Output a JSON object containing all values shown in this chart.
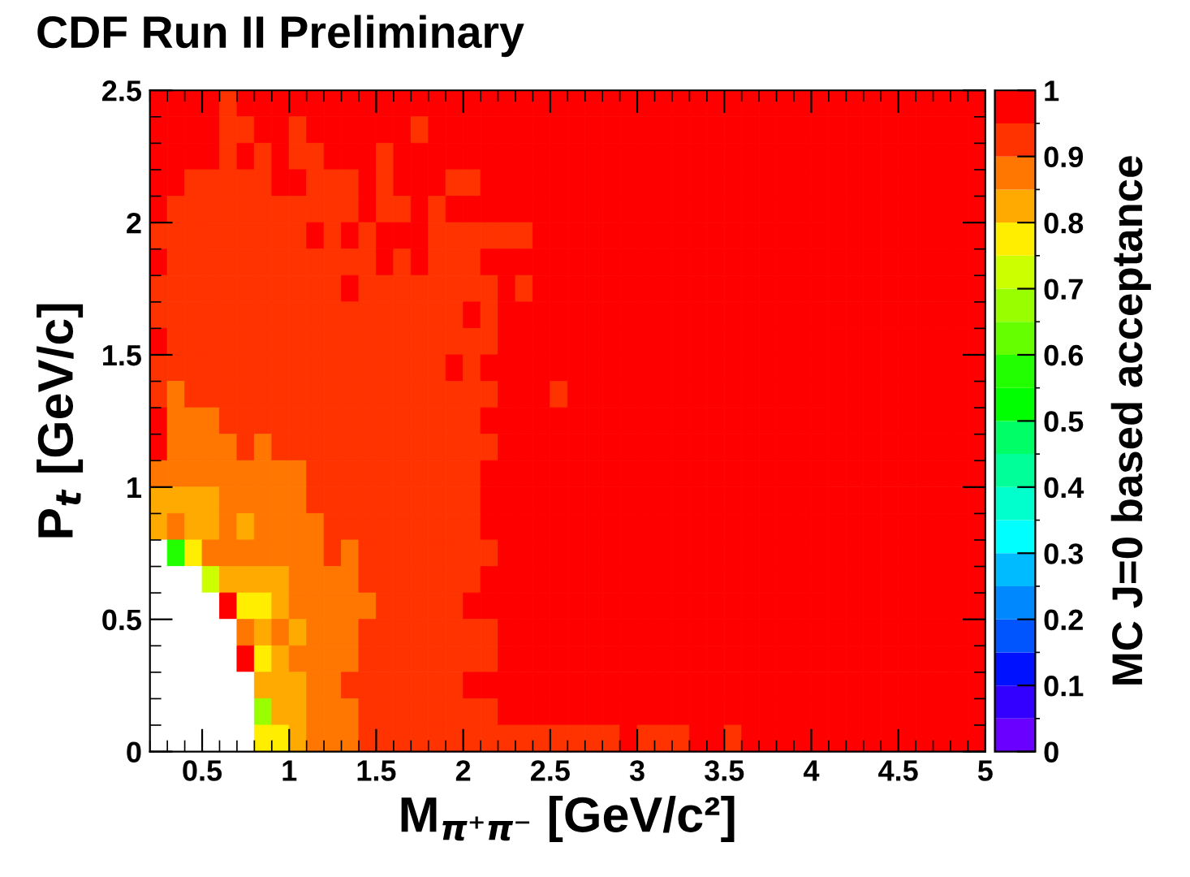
{
  "chart_data": {
    "type": "heatmap",
    "title": "CDF Run II Preliminary",
    "xlabel": "M$_{π⁺π⁻}$ [GeV/c²]",
    "ylabel": "P$_{t}$ [GeV/c]",
    "clabel": "MC J=0 based acceptance",
    "xlim": [
      0.2,
      5
    ],
    "ylim": [
      0,
      2.5
    ],
    "xticks": [
      0.5,
      1,
      1.5,
      2,
      2.5,
      3,
      3.5,
      4,
      4.5,
      5
    ],
    "yticks": [
      0,
      0.5,
      1,
      1.5,
      2,
      2.5
    ],
    "clim": [
      0,
      1
    ],
    "cticks": [
      0,
      0.1,
      0.2,
      0.3,
      0.4,
      0.5,
      0.6,
      0.7,
      0.8,
      0.9,
      1
    ],
    "cells": [
      [
        0.98,
        0.98,
        0.98,
        0.98,
        0.93,
        0.98,
        0.98,
        0.98,
        0.98,
        0.98,
        0.98,
        0.98,
        0.98,
        0.98,
        0.98,
        0.98,
        0.98,
        0.98,
        0.98,
        0.98,
        0.98,
        0.98,
        0.98,
        0.98,
        0.98,
        0.98,
        0.98,
        0.98,
        0.98,
        0.98,
        0.98,
        0.98,
        0.98,
        0.98,
        0.98,
        0.98,
        0.98,
        0.98,
        0.98,
        0.98,
        0.98,
        0.98,
        0.98,
        0.98,
        0.98,
        0.98,
        0.98,
        0.98
      ],
      [
        0.98,
        0.98,
        0.98,
        0.98,
        0.93,
        0.93,
        0.98,
        0.98,
        0.93,
        0.98,
        0.98,
        0.98,
        0.98,
        0.98,
        0.98,
        0.93,
        0.98,
        0.98,
        0.98,
        0.98,
        0.98,
        0.98,
        0.98,
        0.98,
        0.98,
        0.98,
        0.98,
        0.98,
        0.98,
        0.98,
        0.98,
        0.98,
        0.98,
        0.98,
        0.98,
        0.98,
        0.98,
        0.98,
        0.98,
        0.98,
        0.98,
        0.98,
        0.98,
        0.98,
        0.98,
        0.98,
        0.98,
        0.98
      ],
      [
        0.98,
        0.98,
        0.98,
        0.98,
        0.93,
        0.98,
        0.93,
        0.98,
        0.93,
        0.93,
        0.98,
        0.98,
        0.98,
        0.93,
        0.98,
        0.98,
        0.98,
        0.98,
        0.98,
        0.98,
        0.98,
        0.98,
        0.98,
        0.98,
        0.98,
        0.98,
        0.98,
        0.98,
        0.98,
        0.98,
        0.98,
        0.98,
        0.98,
        0.98,
        0.98,
        0.98,
        0.98,
        0.98,
        0.98,
        0.98,
        0.98,
        0.98,
        0.98,
        0.98,
        0.98,
        0.98,
        0.98,
        0.98
      ],
      [
        0.98,
        0.98,
        0.93,
        0.93,
        0.93,
        0.93,
        0.93,
        0.98,
        0.98,
        0.93,
        0.93,
        0.93,
        0.98,
        0.93,
        0.98,
        0.98,
        0.98,
        0.93,
        0.93,
        0.98,
        0.98,
        0.98,
        0.98,
        0.98,
        0.98,
        0.98,
        0.98,
        0.98,
        0.98,
        0.98,
        0.98,
        0.98,
        0.98,
        0.98,
        0.98,
        0.98,
        0.98,
        0.98,
        0.98,
        0.98,
        0.98,
        0.98,
        0.98,
        0.98,
        0.98,
        0.98,
        0.98,
        0.98
      ],
      [
        0.98,
        0.93,
        0.93,
        0.93,
        0.93,
        0.93,
        0.93,
        0.93,
        0.93,
        0.93,
        0.93,
        0.93,
        0.98,
        0.93,
        0.93,
        0.98,
        0.93,
        0.98,
        0.98,
        0.98,
        0.98,
        0.98,
        0.98,
        0.98,
        0.98,
        0.98,
        0.98,
        0.98,
        0.98,
        0.98,
        0.98,
        0.98,
        0.98,
        0.98,
        0.98,
        0.98,
        0.98,
        0.98,
        0.98,
        0.98,
        0.98,
        0.98,
        0.98,
        0.98,
        0.98,
        0.98,
        0.98,
        0.98
      ],
      [
        0.93,
        0.93,
        0.93,
        0.93,
        0.93,
        0.93,
        0.93,
        0.93,
        0.93,
        0.98,
        0.93,
        0.98,
        0.93,
        0.98,
        0.98,
        0.98,
        0.93,
        0.93,
        0.93,
        0.93,
        0.93,
        0.93,
        0.98,
        0.98,
        0.98,
        0.98,
        0.98,
        0.98,
        0.98,
        0.98,
        0.98,
        0.98,
        0.98,
        0.98,
        0.98,
        0.98,
        0.98,
        0.98,
        0.98,
        0.98,
        0.98,
        0.98,
        0.98,
        0.98,
        0.98,
        0.98,
        0.98,
        0.98
      ],
      [
        0.98,
        0.93,
        0.93,
        0.93,
        0.93,
        0.93,
        0.93,
        0.93,
        0.93,
        0.93,
        0.93,
        0.93,
        0.93,
        0.98,
        0.93,
        0.98,
        0.93,
        0.93,
        0.93,
        0.98,
        0.98,
        0.98,
        0.98,
        0.98,
        0.98,
        0.98,
        0.98,
        0.98,
        0.98,
        0.98,
        0.98,
        0.98,
        0.98,
        0.98,
        0.98,
        0.98,
        0.98,
        0.98,
        0.98,
        0.98,
        0.98,
        0.98,
        0.98,
        0.98,
        0.98,
        0.98,
        0.98,
        0.98
      ],
      [
        0.93,
        0.93,
        0.93,
        0.93,
        0.93,
        0.93,
        0.93,
        0.93,
        0.93,
        0.93,
        0.93,
        0.98,
        0.93,
        0.93,
        0.93,
        0.93,
        0.93,
        0.93,
        0.93,
        0.93,
        0.98,
        0.93,
        0.98,
        0.98,
        0.98,
        0.98,
        0.98,
        0.98,
        0.98,
        0.98,
        0.98,
        0.98,
        0.98,
        0.98,
        0.98,
        0.98,
        0.98,
        0.98,
        0.98,
        0.98,
        0.98,
        0.98,
        0.98,
        0.98,
        0.98,
        0.98,
        0.98,
        0.98
      ],
      [
        0.93,
        0.93,
        0.93,
        0.93,
        0.93,
        0.93,
        0.93,
        0.93,
        0.93,
        0.93,
        0.93,
        0.93,
        0.93,
        0.93,
        0.93,
        0.93,
        0.93,
        0.93,
        0.98,
        0.93,
        0.98,
        0.98,
        0.98,
        0.98,
        0.98,
        0.98,
        0.98,
        0.98,
        0.98,
        0.98,
        0.98,
        0.98,
        0.98,
        0.98,
        0.98,
        0.98,
        0.98,
        0.98,
        0.98,
        0.98,
        0.98,
        0.98,
        0.98,
        0.98,
        0.98,
        0.98,
        0.98,
        0.98
      ],
      [
        0.98,
        0.93,
        0.93,
        0.93,
        0.93,
        0.93,
        0.93,
        0.93,
        0.93,
        0.93,
        0.93,
        0.93,
        0.93,
        0.93,
        0.93,
        0.93,
        0.93,
        0.93,
        0.93,
        0.93,
        0.98,
        0.98,
        0.98,
        0.98,
        0.98,
        0.98,
        0.98,
        0.98,
        0.98,
        0.98,
        0.98,
        0.98,
        0.98,
        0.98,
        0.98,
        0.98,
        0.98,
        0.98,
        0.98,
        0.98,
        0.98,
        0.98,
        0.98,
        0.98,
        0.98,
        0.98,
        0.98,
        0.98
      ],
      [
        0.93,
        0.93,
        0.93,
        0.93,
        0.93,
        0.93,
        0.93,
        0.93,
        0.93,
        0.93,
        0.93,
        0.93,
        0.93,
        0.93,
        0.93,
        0.93,
        0.93,
        0.98,
        0.93,
        0.98,
        0.98,
        0.98,
        0.98,
        0.98,
        0.98,
        0.98,
        0.98,
        0.98,
        0.98,
        0.98,
        0.98,
        0.98,
        0.98,
        0.98,
        0.98,
        0.98,
        0.98,
        0.98,
        0.98,
        0.98,
        0.98,
        0.98,
        0.98,
        0.98,
        0.98,
        0.98,
        0.98,
        0.98
      ],
      [
        0.93,
        0.88,
        0.93,
        0.93,
        0.93,
        0.93,
        0.93,
        0.93,
        0.93,
        0.93,
        0.93,
        0.93,
        0.93,
        0.93,
        0.93,
        0.93,
        0.93,
        0.93,
        0.93,
        0.93,
        0.98,
        0.98,
        0.98,
        0.93,
        0.98,
        0.98,
        0.98,
        0.98,
        0.98,
        0.98,
        0.98,
        0.98,
        0.98,
        0.98,
        0.98,
        0.98,
        0.98,
        0.98,
        0.98,
        0.98,
        0.98,
        0.98,
        0.98,
        0.98,
        0.98,
        0.98,
        0.98,
        0.98
      ],
      [
        0.98,
        0.88,
        0.88,
        0.88,
        0.93,
        0.93,
        0.93,
        0.93,
        0.93,
        0.93,
        0.93,
        0.93,
        0.93,
        0.93,
        0.93,
        0.93,
        0.93,
        0.93,
        0.93,
        0.98,
        0.98,
        0.98,
        0.98,
        0.98,
        0.98,
        0.98,
        0.98,
        0.98,
        0.98,
        0.98,
        0.98,
        0.98,
        0.98,
        0.98,
        0.98,
        0.98,
        0.98,
        0.98,
        0.98,
        0.98,
        0.98,
        0.98,
        0.98,
        0.98,
        0.98,
        0.98,
        0.98,
        0.98
      ],
      [
        0.98,
        0.88,
        0.88,
        0.88,
        0.88,
        0.93,
        0.88,
        0.93,
        0.93,
        0.93,
        0.93,
        0.93,
        0.93,
        0.93,
        0.93,
        0.93,
        0.93,
        0.93,
        0.93,
        0.93,
        0.98,
        0.98,
        0.98,
        0.98,
        0.98,
        0.98,
        0.98,
        0.98,
        0.98,
        0.98,
        0.98,
        0.98,
        0.98,
        0.98,
        0.98,
        0.98,
        0.98,
        0.98,
        0.98,
        0.98,
        0.98,
        0.98,
        0.98,
        0.98,
        0.98,
        0.98,
        0.98,
        0.98
      ],
      [
        0.88,
        0.88,
        0.88,
        0.88,
        0.88,
        0.88,
        0.88,
        0.88,
        0.88,
        0.93,
        0.93,
        0.93,
        0.93,
        0.93,
        0.93,
        0.93,
        0.93,
        0.93,
        0.93,
        0.98,
        0.98,
        0.98,
        0.98,
        0.98,
        0.98,
        0.98,
        0.98,
        0.98,
        0.98,
        0.98,
        0.98,
        0.98,
        0.98,
        0.98,
        0.98,
        0.98,
        0.98,
        0.98,
        0.98,
        0.98,
        0.98,
        0.98,
        0.98,
        0.98,
        0.98,
        0.98,
        0.98,
        0.98
      ],
      [
        0.83,
        0.83,
        0.83,
        0.83,
        0.88,
        0.88,
        0.88,
        0.88,
        0.88,
        0.93,
        0.93,
        0.93,
        0.93,
        0.93,
        0.93,
        0.93,
        0.93,
        0.93,
        0.93,
        0.98,
        0.98,
        0.98,
        0.98,
        0.98,
        0.98,
        0.98,
        0.98,
        0.98,
        0.98,
        0.98,
        0.98,
        0.98,
        0.98,
        0.98,
        0.98,
        0.98,
        0.98,
        0.98,
        0.98,
        0.98,
        0.98,
        0.98,
        0.98,
        0.98,
        0.98,
        0.98,
        0.98,
        0.98
      ],
      [
        0.83,
        0.88,
        0.83,
        0.83,
        0.88,
        0.83,
        0.88,
        0.88,
        0.88,
        0.88,
        0.93,
        0.93,
        0.93,
        0.93,
        0.93,
        0.93,
        0.93,
        0.93,
        0.93,
        0.98,
        0.98,
        0.98,
        0.98,
        0.98,
        0.98,
        0.98,
        0.98,
        0.98,
        0.98,
        0.98,
        0.98,
        0.98,
        0.98,
        0.98,
        0.98,
        0.98,
        0.98,
        0.98,
        0.98,
        0.98,
        0.98,
        0.98,
        0.98,
        0.98,
        0.98,
        0.98,
        0.98,
        0.98
      ],
      [
        null,
        0.57,
        0.78,
        0.88,
        0.88,
        0.88,
        0.88,
        0.88,
        0.88,
        0.88,
        0.93,
        0.88,
        0.93,
        0.93,
        0.93,
        0.93,
        0.93,
        0.93,
        0.93,
        0.93,
        0.98,
        0.98,
        0.98,
        0.98,
        0.98,
        0.98,
        0.98,
        0.98,
        0.98,
        0.98,
        0.98,
        0.98,
        0.98,
        0.98,
        0.98,
        0.98,
        0.98,
        0.98,
        0.98,
        0.98,
        0.98,
        0.98,
        0.98,
        0.98,
        0.98,
        0.98,
        0.98,
        0.98
      ],
      [
        null,
        null,
        null,
        0.72,
        0.83,
        0.83,
        0.83,
        0.83,
        0.88,
        0.88,
        0.88,
        0.88,
        0.93,
        0.93,
        0.93,
        0.93,
        0.93,
        0.93,
        0.93,
        0.98,
        0.98,
        0.98,
        0.98,
        0.98,
        0.98,
        0.98,
        0.98,
        0.98,
        0.98,
        0.98,
        0.98,
        0.98,
        0.98,
        0.98,
        0.98,
        0.98,
        0.98,
        0.98,
        0.98,
        0.98,
        0.98,
        0.98,
        0.98,
        0.98,
        0.98,
        0.98,
        0.98,
        0.98
      ],
      [
        null,
        null,
        null,
        null,
        0.98,
        0.78,
        0.78,
        0.83,
        0.88,
        0.88,
        0.88,
        0.88,
        0.88,
        0.93,
        0.93,
        0.93,
        0.93,
        0.93,
        0.98,
        0.98,
        0.98,
        0.98,
        0.98,
        0.98,
        0.98,
        0.98,
        0.98,
        0.98,
        0.98,
        0.98,
        0.98,
        0.98,
        0.98,
        0.98,
        0.98,
        0.98,
        0.98,
        0.98,
        0.98,
        0.98,
        0.98,
        0.98,
        0.98,
        0.98,
        0.98,
        0.98,
        0.98,
        0.98
      ],
      [
        null,
        null,
        null,
        null,
        null,
        0.88,
        0.83,
        0.88,
        0.83,
        0.88,
        0.88,
        0.88,
        0.93,
        0.93,
        0.93,
        0.93,
        0.93,
        0.93,
        0.93,
        0.93,
        0.98,
        0.98,
        0.98,
        0.98,
        0.98,
        0.98,
        0.98,
        0.98,
        0.98,
        0.98,
        0.98,
        0.98,
        0.98,
        0.98,
        0.98,
        0.98,
        0.98,
        0.98,
        0.98,
        0.98,
        0.98,
        0.98,
        0.98,
        0.98,
        0.98,
        0.98,
        0.98,
        0.98
      ],
      [
        null,
        null,
        null,
        null,
        null,
        0.98,
        0.78,
        0.83,
        0.88,
        0.88,
        0.88,
        0.88,
        0.93,
        0.93,
        0.93,
        0.93,
        0.93,
        0.93,
        0.93,
        0.93,
        0.98,
        0.98,
        0.98,
        0.98,
        0.98,
        0.98,
        0.98,
        0.98,
        0.98,
        0.98,
        0.98,
        0.98,
        0.98,
        0.98,
        0.98,
        0.98,
        0.98,
        0.98,
        0.98,
        0.98,
        0.98,
        0.98,
        0.98,
        0.98,
        0.98,
        0.98,
        0.98,
        0.98
      ],
      [
        null,
        null,
        null,
        null,
        null,
        null,
        0.83,
        0.83,
        0.83,
        0.88,
        0.88,
        0.93,
        0.93,
        0.93,
        0.93,
        0.93,
        0.93,
        0.93,
        0.98,
        0.98,
        0.98,
        0.98,
        0.98,
        0.98,
        0.98,
        0.98,
        0.98,
        0.98,
        0.98,
        0.98,
        0.98,
        0.98,
        0.98,
        0.98,
        0.98,
        0.98,
        0.98,
        0.98,
        0.98,
        0.98,
        0.98,
        0.98,
        0.98,
        0.98,
        0.98,
        0.98,
        0.98,
        0.98
      ],
      [
        null,
        null,
        null,
        null,
        null,
        null,
        0.67,
        0.83,
        0.83,
        0.88,
        0.88,
        0.88,
        0.93,
        0.93,
        0.93,
        0.93,
        0.93,
        0.93,
        0.93,
        0.93,
        0.98,
        0.98,
        0.98,
        0.98,
        0.98,
        0.98,
        0.98,
        0.98,
        0.98,
        0.98,
        0.98,
        0.98,
        0.98,
        0.98,
        0.98,
        0.98,
        0.98,
        0.98,
        0.98,
        0.98,
        0.98,
        0.98,
        0.98,
        0.98,
        0.98,
        0.98,
        0.98,
        0.98
      ],
      [
        null,
        null,
        null,
        null,
        null,
        null,
        0.78,
        0.78,
        0.83,
        0.88,
        0.88,
        0.88,
        0.93,
        0.93,
        0.93,
        0.93,
        0.93,
        0.93,
        0.93,
        0.93,
        0.93,
        0.93,
        0.93,
        0.93,
        0.93,
        0.93,
        0.93,
        0.98,
        0.93,
        0.93,
        0.93,
        0.98,
        0.98,
        0.93,
        0.98,
        0.98,
        0.98,
        0.98,
        0.98,
        0.98,
        0.98,
        0.98,
        0.98,
        0.98,
        0.98,
        0.98,
        0.98,
        0.98
      ]
    ]
  }
}
